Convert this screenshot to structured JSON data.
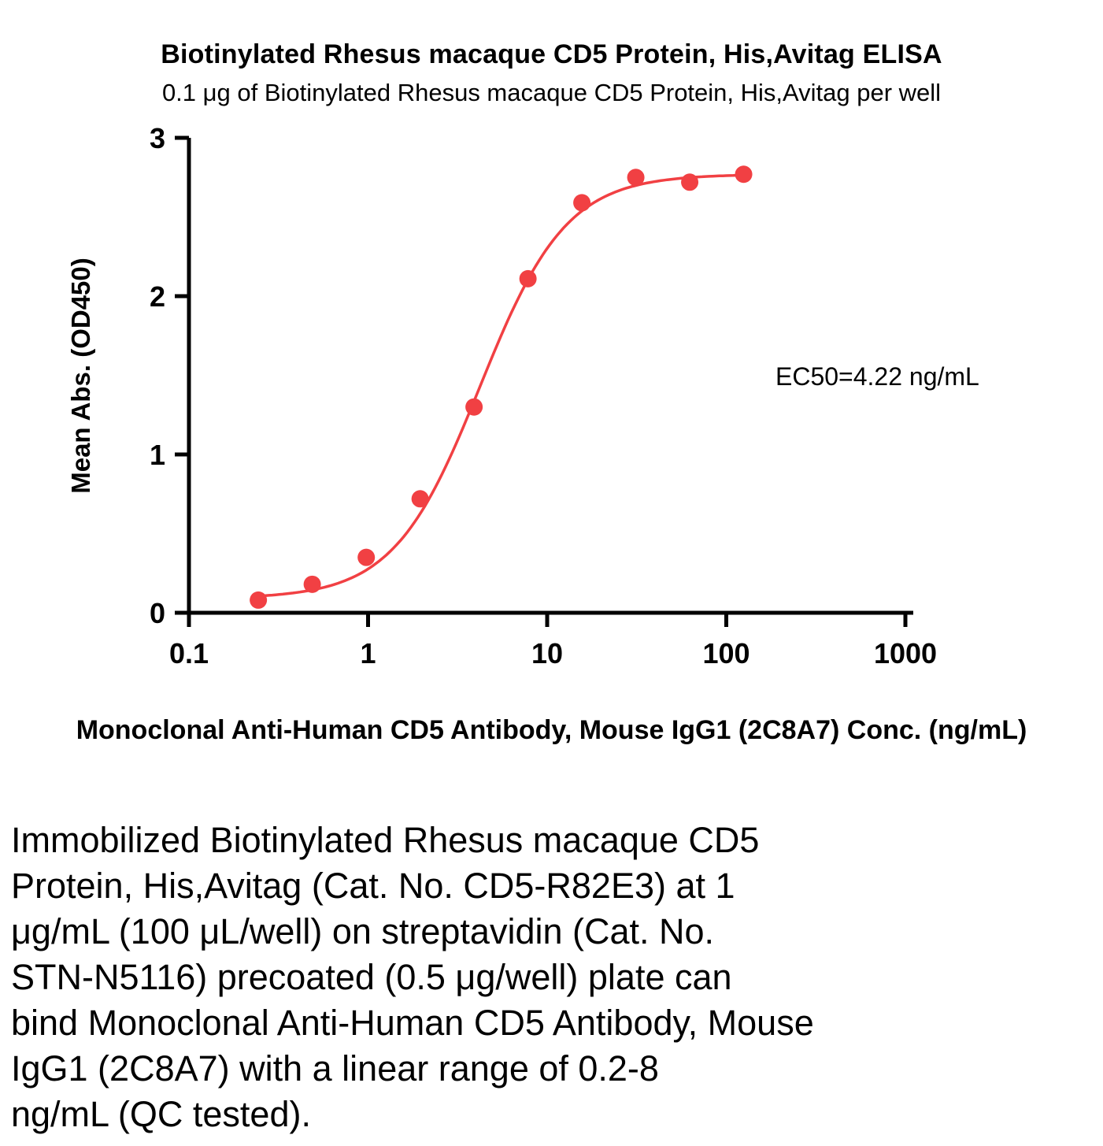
{
  "chart_data": {
    "type": "scatter",
    "title": "Biotinylated Rhesus macaque CD5 Protein, His,Avitag ELISA",
    "subtitle": "0.1 μg of Biotinylated Rhesus macaque CD5 Protein, His,Avitag per well",
    "xlabel": "Monoclonal Anti-Human CD5 Antibody, Mouse IgG1 (2C8A7) Conc. (ng/mL)",
    "ylabel": "Mean Abs. (OD450)",
    "x_scale": "log10",
    "xlim": [
      0.1,
      1000
    ],
    "ylim": [
      0,
      3
    ],
    "xticks": [
      0.1,
      1,
      10,
      100,
      1000
    ],
    "yticks": [
      0,
      1,
      2,
      3
    ],
    "x": [
      0.244,
      0.488,
      0.977,
      1.953,
      3.906,
      7.813,
      15.625,
      31.25,
      62.5,
      125
    ],
    "y": [
      0.08,
      0.18,
      0.35,
      0.72,
      1.3,
      2.11,
      2.59,
      2.75,
      2.72,
      2.77
    ],
    "fit": {
      "model": "4PL",
      "bottom": 0.09,
      "top": 2.77,
      "ec50": 4.22,
      "hill": 1.8
    },
    "annotation": "EC50=4.22 ng/mL",
    "point_color": "#F14043",
    "curve_color": "#F14043",
    "axis_color": "#000000",
    "grid": false,
    "legend": "none"
  },
  "description": {
    "lines": [
      "Immobilized Biotinylated Rhesus macaque CD5",
      "Protein, His,Avitag (Cat. No. CD5-R82E3) at 1",
      "μg/mL (100 μL/well) on streptavidin (Cat. No.",
      "STN-N5116) precoated (0.5 μg/well) plate can",
      "bind Monoclonal Anti-Human CD5 Antibody, Mouse",
      "IgG1 (2C8A7) with a linear range of 0.2-8",
      "ng/mL (QC tested)."
    ]
  }
}
